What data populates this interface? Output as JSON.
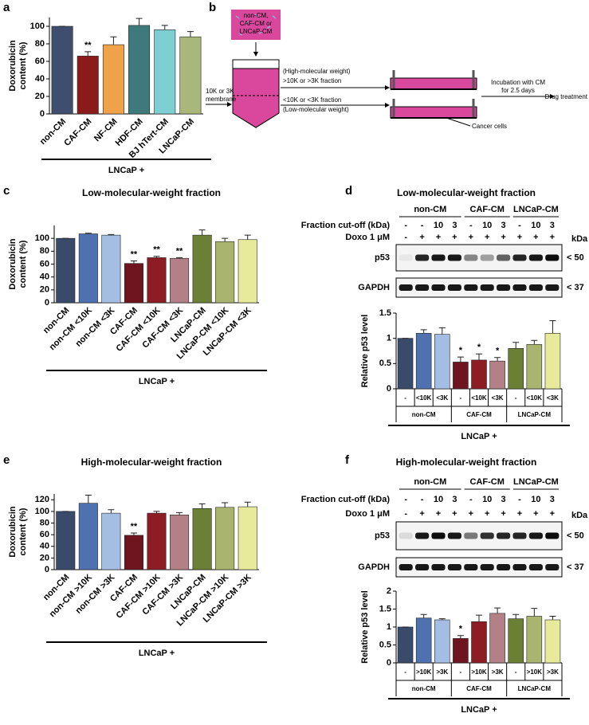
{
  "chart_data": [
    {
      "type": "bar",
      "panel": "a",
      "ylabel": [
        "Doxorubicin",
        "content (%)"
      ],
      "categories": [
        "non-CM",
        "CAF-CM",
        "NF-CM",
        "HDF-CM",
        "BJ hTert-CM",
        "LNCaP-CM"
      ],
      "values": [
        100,
        66,
        79,
        101,
        96,
        88
      ],
      "errors": [
        0,
        5,
        9,
        8,
        5,
        6
      ],
      "significance": [
        null,
        "**",
        null,
        null,
        null,
        null
      ],
      "colors": [
        "#3f4d6e",
        "#8b1a1a",
        "#f0a24b",
        "#3e7a7b",
        "#7dcfd2",
        "#a9b87a"
      ],
      "ylim": [
        0,
        110
      ],
      "yticks": [
        0,
        20,
        40,
        60,
        80,
        100
      ],
      "group_label": "LNCaP +"
    },
    {
      "type": "bar",
      "panel": "c",
      "title": "Low-molecular-weight fraction",
      "ylabel": [
        "Doxorubicin",
        "content (%)"
      ],
      "categories": [
        "non-CM",
        "non-CM <10K",
        "non-CM <3K",
        "CAF-CM",
        "CAF-CM <10K",
        "CAF-CM <3K",
        "LNCaP-CM",
        "LNCaP-CM <10K",
        "LNCaP-CM <3K"
      ],
      "values": [
        100,
        107,
        105,
        61,
        70,
        69,
        105,
        95,
        98
      ],
      "errors": [
        0,
        1,
        1,
        4,
        2,
        1,
        8,
        5,
        7
      ],
      "significance": [
        null,
        null,
        null,
        "**",
        "**",
        "**",
        null,
        null,
        null
      ],
      "colors": [
        "#3a4a6b",
        "#4e72b0",
        "#a4bde3",
        "#6e1520",
        "#8e1c24",
        "#b48088",
        "#6b7f35",
        "#a9b56e",
        "#e6ea9a"
      ],
      "ylim": [
        0,
        120
      ],
      "yticks": [
        0,
        20,
        40,
        60,
        80,
        100
      ],
      "group_label": "LNCaP +"
    },
    {
      "type": "bar",
      "panel": "d",
      "title": "Low-molecular-weight fraction",
      "ylabel": [
        "Relative p53 level"
      ],
      "categories": [
        "-",
        "<10K",
        "<3K",
        "-",
        "<10K",
        "<3K",
        "-",
        "<10K",
        "<3K"
      ],
      "groups": [
        "non-CM",
        "CAF-CM",
        "LNCaP-CM"
      ],
      "values": [
        1,
        1.1,
        1.08,
        0.53,
        0.57,
        0.55,
        0.8,
        0.88,
        1.1
      ],
      "errors": [
        0,
        0.07,
        0.13,
        0.1,
        0.12,
        0.07,
        0.12,
        0.08,
        0.25
      ],
      "significance": [
        null,
        null,
        null,
        "*",
        "*",
        "*",
        null,
        null,
        null
      ],
      "colors": [
        "#3a4a6b",
        "#4e72b0",
        "#a4bde3",
        "#6e1520",
        "#8e1c24",
        "#b48088",
        "#6b7f35",
        "#a9b56e",
        "#e6ea9a"
      ],
      "ylim": [
        0,
        1.5
      ],
      "yticks": [
        0,
        0.5,
        1,
        1.5
      ],
      "group_label": "LNCaP +",
      "blot": {
        "groups": [
          "non-CM",
          "CAF-CM",
          "LNCaP-CM"
        ],
        "cutoff_label": "Fraction cut-off (kDa)",
        "cutoff": [
          "-",
          "-",
          "10",
          "3",
          "-",
          "10",
          "3",
          "-",
          "10",
          "3"
        ],
        "doxo_label": "Doxo 1 μM",
        "doxo": [
          "-",
          "+",
          "+",
          "+",
          "+",
          "+",
          "+",
          "+",
          "+",
          "+"
        ],
        "kda": "kDa",
        "rows": [
          {
            "name": "p53",
            "marker": "< 50"
          },
          {
            "name": "GAPDH",
            "marker": "< 37"
          }
        ]
      }
    },
    {
      "type": "bar",
      "panel": "e",
      "title": "High-molecular-weight fraction",
      "ylabel": [
        "Doxorubicin",
        "content (%)"
      ],
      "categories": [
        "non-CM",
        "non-CM >10K",
        "non-CM >3K",
        "CAF-CM",
        "CAF-CM >10K",
        "CAF-CM >3K",
        "LNCaP-CM",
        "LNCaP-CM >10K",
        "LNCaP-CM >3K"
      ],
      "values": [
        100,
        114,
        97,
        59,
        97,
        94,
        105,
        107,
        108
      ],
      "errors": [
        0,
        14,
        6,
        4,
        3,
        4,
        8,
        8,
        8
      ],
      "significance": [
        null,
        null,
        null,
        "**",
        null,
        null,
        null,
        null,
        null
      ],
      "colors": [
        "#3a4a6b",
        "#4e72b0",
        "#a4bde3",
        "#6e1520",
        "#8e1c24",
        "#b48088",
        "#6b7f35",
        "#a9b56e",
        "#e6ea9a"
      ],
      "ylim": [
        0,
        130
      ],
      "yticks": [
        0,
        20,
        40,
        60,
        80,
        100,
        120
      ],
      "group_label": "LNCaP +"
    },
    {
      "type": "bar",
      "panel": "f",
      "title": "High-molecular-weight fraction",
      "ylabel": [
        "Relative p53 level"
      ],
      "categories": [
        "-",
        ">10K",
        ">3K",
        "-",
        ">10K",
        ">3K",
        "-",
        ">10K",
        ">3K"
      ],
      "groups": [
        "non-CM",
        "CAF-CM",
        "LNCaP-CM"
      ],
      "values": [
        1,
        1.25,
        1.2,
        0.68,
        1.15,
        1.38,
        1.23,
        1.3,
        1.2
      ],
      "errors": [
        0,
        0.1,
        0.03,
        0.08,
        0.18,
        0.15,
        0.12,
        0.22,
        0.1
      ],
      "significance": [
        null,
        null,
        null,
        "*",
        null,
        null,
        null,
        null,
        null
      ],
      "colors": [
        "#3a4a6b",
        "#4e72b0",
        "#a4bde3",
        "#6e1520",
        "#8e1c24",
        "#b48088",
        "#6b7f35",
        "#a9b56e",
        "#e6ea9a"
      ],
      "ylim": [
        0,
        2
      ],
      "yticks": [
        0,
        0.5,
        1,
        1.5,
        2
      ],
      "group_label": "LNCaP +",
      "blot": {
        "groups": [
          "non-CM",
          "CAF-CM",
          "LNCaP-CM"
        ],
        "cutoff_label": "Fraction cut-off (kDa)",
        "cutoff": [
          "-",
          "-",
          "10",
          "3",
          "-",
          "10",
          "3",
          "-",
          "10",
          "3"
        ],
        "doxo_label": "Doxo 1 μM",
        "doxo": [
          "-",
          "+",
          "+",
          "+",
          "+",
          "+",
          "+",
          "+",
          "+",
          "+"
        ],
        "kda": "kDa",
        "rows": [
          {
            "name": "p53",
            "marker": "< 50"
          },
          {
            "name": "GAPDH",
            "marker": "< 37"
          }
        ]
      }
    }
  ],
  "diagram": {
    "panel": "b",
    "source": [
      "non-CM,",
      "CAF-CM or",
      "LNCaP-CM"
    ],
    "membrane": [
      "10K or 3K",
      "membrane"
    ],
    "high": [
      "(High-molecular weight)",
      ">10K or >3K fraction"
    ],
    "low": [
      "<10K or <3K fraction",
      "(Low-molecular weight)"
    ],
    "incubation": [
      "Incubation with CM",
      "for 2.5 days"
    ],
    "drug": "Drug treatment",
    "cells": "Cancer cells"
  }
}
